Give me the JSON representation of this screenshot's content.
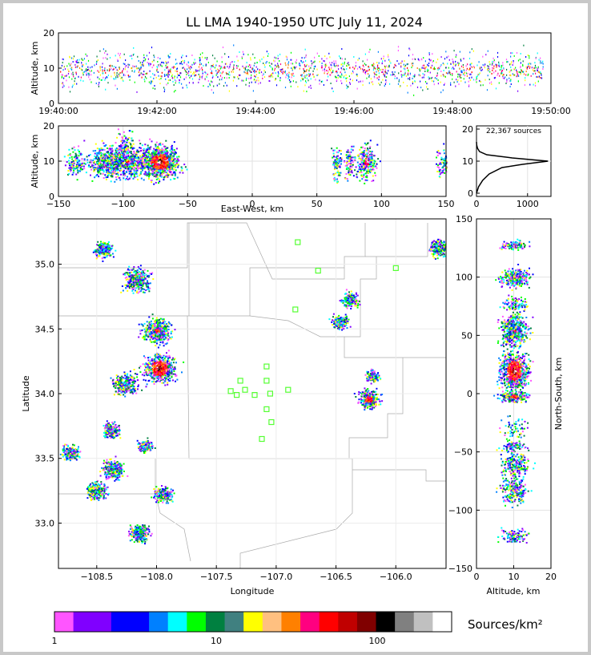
{
  "chart_data": {
    "type": "scatter",
    "title": "LL LMA 1940-1950 UTC July 11, 2024",
    "time_altitude": {
      "ylabel": "Altitude, km",
      "ylim": [
        0,
        20
      ],
      "yticks": [
        "0",
        "10",
        "20"
      ],
      "xticks": [
        "19:40:00",
        "19:42:00",
        "19:44:00",
        "19:46:00",
        "19:48:00",
        "19:50:00"
      ]
    },
    "ew_altitude": {
      "xlabel": "East-West, km",
      "ylabel": "Altitude, km",
      "xlim": [
        -150,
        150
      ],
      "ylim": [
        0,
        20
      ],
      "xticks": [
        "−150",
        "−100",
        "−50",
        "0",
        "50",
        "100",
        "150"
      ],
      "yticks": [
        "0",
        "10",
        "20"
      ]
    },
    "histogram": {
      "annotation": "22,367 sources",
      "xticks": [
        "0",
        "1000"
      ],
      "yticks": [
        "0",
        "10",
        "20"
      ],
      "profile": [
        [
          0,
          0
        ],
        [
          40,
          2
        ],
        [
          120,
          4
        ],
        [
          250,
          6
        ],
        [
          500,
          8
        ],
        [
          900,
          9
        ],
        [
          1400,
          10
        ],
        [
          700,
          11
        ],
        [
          200,
          12
        ],
        [
          60,
          13
        ],
        [
          20,
          14
        ],
        [
          5,
          15
        ],
        [
          0,
          16
        ]
      ]
    },
    "plan_view": {
      "xlabel": "Longitude",
      "ylabel": "Latitude",
      "xlim": [
        -108.82,
        -105.58
      ],
      "ylim": [
        32.65,
        35.35
      ],
      "xticks": [
        "−108.5",
        "−108.0",
        "−107.5",
        "−107.0",
        "−106.5",
        "−106.0"
      ],
      "yticks": [
        "33.0",
        "33.5",
        "34.0",
        "34.5",
        "35.0"
      ],
      "stations": [
        [
          -106.82,
          35.17
        ],
        [
          -106.65,
          34.95
        ],
        [
          -106.0,
          34.97
        ],
        [
          -106.84,
          34.65
        ],
        [
          -107.08,
          34.21
        ],
        [
          -107.3,
          34.1
        ],
        [
          -107.08,
          34.1
        ],
        [
          -107.38,
          34.02
        ],
        [
          -107.26,
          34.03
        ],
        [
          -107.33,
          33.99
        ],
        [
          -107.18,
          33.99
        ],
        [
          -107.05,
          34.0
        ],
        [
          -106.9,
          34.03
        ],
        [
          -107.08,
          33.88
        ],
        [
          -107.04,
          33.78
        ],
        [
          -107.12,
          33.65
        ]
      ]
    },
    "ns_altitude": {
      "xlabel": "Altitude, km",
      "ylabel": "North-South, km",
      "xlim": [
        0,
        20
      ],
      "ylim": [
        -150,
        150
      ],
      "xticks": [
        "0",
        "10",
        "20"
      ],
      "yticks": [
        "−150",
        "−100",
        "−50",
        "0",
        "50",
        "100",
        "150"
      ]
    },
    "colorbar": {
      "label": "Sources/km²",
      "ticks": [
        "1",
        "10",
        "100"
      ],
      "colors": [
        "#ff55ff",
        "#8000ff",
        "#8000ff",
        "#0000ff",
        "#0000ff",
        "#0080ff",
        "#00ffff",
        "#00ff00",
        "#008040",
        "#408080",
        "#ffff00",
        "#ffc080",
        "#ff8000",
        "#ff0080",
        "#ff0000",
        "#c00000",
        "#800000",
        "#000000",
        "#808080",
        "#c0c0c0",
        "#ffffff"
      ]
    },
    "clusters": [
      {
        "lon": -107.98,
        "lat": 34.2,
        "size": 1.0,
        "intensity": 1.0
      },
      {
        "lon": -108.0,
        "lat": 34.49,
        "size": 0.85,
        "intensity": 0.65
      },
      {
        "lon": -108.27,
        "lat": 34.08,
        "size": 0.6,
        "intensity": 0.55
      },
      {
        "lon": -108.17,
        "lat": 34.89,
        "size": 0.7,
        "intensity": 0.5
      },
      {
        "lon": -108.37,
        "lat": 33.42,
        "size": 0.5,
        "intensity": 0.5
      },
      {
        "lon": -108.5,
        "lat": 33.25,
        "size": 0.45,
        "intensity": 0.45
      },
      {
        "lon": -108.15,
        "lat": 32.93,
        "size": 0.4,
        "intensity": 0.45
      },
      {
        "lon": -107.95,
        "lat": 33.23,
        "size": 0.35,
        "intensity": 0.4
      },
      {
        "lon": -108.45,
        "lat": 35.12,
        "size": 0.35,
        "intensity": 0.35
      },
      {
        "lon": -108.72,
        "lat": 33.55,
        "size": 0.3,
        "intensity": 0.35
      },
      {
        "lon": -108.38,
        "lat": 33.72,
        "size": 0.3,
        "intensity": 0.3
      },
      {
        "lon": -106.23,
        "lat": 33.96,
        "size": 0.45,
        "intensity": 0.85
      },
      {
        "lon": -106.47,
        "lat": 34.56,
        "size": 0.3,
        "intensity": 0.4
      },
      {
        "lon": -106.38,
        "lat": 34.73,
        "size": 0.3,
        "intensity": 0.45
      },
      {
        "lon": -105.65,
        "lat": 35.13,
        "size": 0.35,
        "intensity": 0.45
      },
      {
        "lon": -108.1,
        "lat": 33.6,
        "size": 0.2,
        "intensity": 0.3
      },
      {
        "lon": -106.2,
        "lat": 34.14,
        "size": 0.15,
        "intensity": 0.3
      }
    ]
  }
}
